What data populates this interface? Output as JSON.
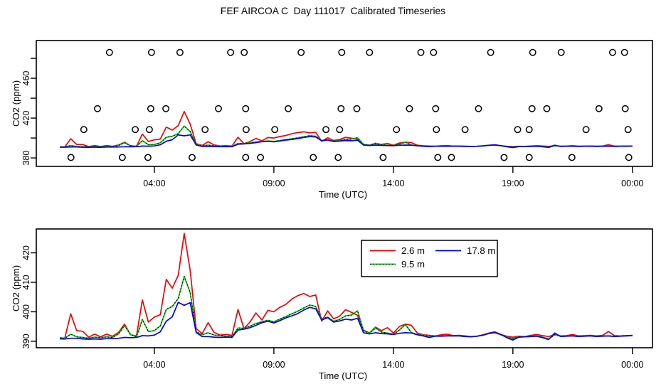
{
  "chart_data": {
    "type": "line",
    "title": "FEF AIRCOA C  Day 111017  Calibrated Timeseries",
    "xlabel": "Time (UTC)",
    "ylabel": "CO2 (ppm)",
    "xlim": [
      -0.94,
      24.84
    ],
    "xticks": [
      {
        "t": 4,
        "label": "04:00"
      },
      {
        "t": 9,
        "label": "09:00"
      },
      {
        "t": 14,
        "label": "14:00"
      },
      {
        "t": 19,
        "label": "19:00"
      },
      {
        "t": 24,
        "label": "00:00"
      }
    ],
    "x_hours": [
      0.05,
      0.25,
      0.5,
      0.75,
      1,
      1.25,
      1.5,
      1.75,
      2,
      2.25,
      2.5,
      2.75,
      3,
      3.25,
      3.5,
      3.75,
      4,
      4.25,
      4.5,
      4.75,
      5,
      5.25,
      5.5,
      5.75,
      6,
      6.25,
      6.5,
      6.75,
      7,
      7.25,
      7.5,
      7.75,
      8,
      8.25,
      8.5,
      8.75,
      9,
      9.25,
      9.5,
      9.75,
      10,
      10.25,
      10.5,
      10.75,
      11,
      11.25,
      11.5,
      11.75,
      12,
      12.25,
      12.5,
      12.75,
      13,
      13.25,
      13.5,
      13.75,
      14,
      14.25,
      14.5,
      14.75,
      15,
      15.25,
      15.5,
      15.75,
      16,
      16.25,
      16.5,
      16.75,
      17,
      17.25,
      17.5,
      17.75,
      18,
      18.25,
      18.5,
      18.75,
      19,
      19.25,
      19.5,
      19.75,
      20,
      20.25,
      20.5,
      20.75,
      21,
      21.25,
      21.5,
      21.75,
      22,
      22.25,
      22.5,
      22.75,
      23,
      23.25,
      23.5,
      23.75,
      24
    ],
    "series": [
      {
        "name": "2.6 m",
        "color": "#f50000",
        "style": "solid",
        "values": [
          391.2,
          391.0,
          399.3,
          393.6,
          393.4,
          391.4,
          392.4,
          391.5,
          392.4,
          391.7,
          393.0,
          395.8,
          392.2,
          391.8,
          404.0,
          396.5,
          398.2,
          399.0,
          411.0,
          408.0,
          412.4,
          426.6,
          414.0,
          394.3,
          392.6,
          396.3,
          393.0,
          392.1,
          392.3,
          392.0,
          400.8,
          394.3,
          396.5,
          399.6,
          397.2,
          400.5,
          400.0,
          401.5,
          402.5,
          404.3,
          405.5,
          406.2,
          405.2,
          405.7,
          396.8,
          400.3,
          397.6,
          398.5,
          400.7,
          399.8,
          398.8,
          393.8,
          392.8,
          394.8,
          393.6,
          394.6,
          392.8,
          395.0,
          395.8,
          395.4,
          392.8,
          392.2,
          392.0,
          391.8,
          392.2,
          392.4,
          391.9,
          392.0,
          391.8,
          391.6,
          391.7,
          392.2,
          392.8,
          393.2,
          392.3,
          391.7,
          391.4,
          391.7,
          391.6,
          392.0,
          392.3,
          391.9,
          391.6,
          392.3,
          391.8,
          391.9,
          392.3,
          391.8,
          391.9,
          392.0,
          391.8,
          392.0,
          393.3,
          391.9,
          391.8,
          391.9,
          392.0
        ]
      },
      {
        "name": "9.5 m",
        "color": "#00c300",
        "style": "dotted",
        "values": [
          391.0,
          391.0,
          392.4,
          391.5,
          391.3,
          391.0,
          391.4,
          391.2,
          391.5,
          391.3,
          392.5,
          395.3,
          392.3,
          391.5,
          397.4,
          393.3,
          393.6,
          395.2,
          400.8,
          401.8,
          404.5,
          412.0,
          406.5,
          393.2,
          392.2,
          392.9,
          392.1,
          391.9,
          391.7,
          391.6,
          394.5,
          394.4,
          395.1,
          396.0,
          396.6,
          397.1,
          396.6,
          397.5,
          398.4,
          399.3,
          400.2,
          401.3,
          402.3,
          401.8,
          397.5,
          398.2,
          396.8,
          397.4,
          398.6,
          398.9,
          400.3,
          393.6,
          392.7,
          394.5,
          393.1,
          392.8,
          392.4,
          393.8,
          395.7,
          393.0,
          392.3,
          392.0,
          391.8,
          391.8,
          391.8,
          391.9,
          391.8,
          391.9,
          391.7,
          391.6,
          391.7,
          392.0,
          392.6,
          392.9,
          392.2,
          391.4,
          390.9,
          391.5,
          391.5,
          391.7,
          391.8,
          391.4,
          390.8,
          392.2,
          391.7,
          391.8,
          391.9,
          391.7,
          391.8,
          391.9,
          391.7,
          391.8,
          391.8,
          391.7,
          391.8,
          391.9,
          391.9
        ]
      },
      {
        "name": "17.8 m",
        "color": "#0000ee",
        "style": "solid",
        "values": [
          390.8,
          390.8,
          391.0,
          391.0,
          390.8,
          390.7,
          390.8,
          390.7,
          390.9,
          390.9,
          391.0,
          391.3,
          391.2,
          391.3,
          391.9,
          391.8,
          392.1,
          393.2,
          396.8,
          398.3,
          403.2,
          402.2,
          403.1,
          393.0,
          391.6,
          391.6,
          391.4,
          391.3,
          391.4,
          391.3,
          393.8,
          394.1,
          394.6,
          395.4,
          396.3,
          396.8,
          396.2,
          397.0,
          397.9,
          398.6,
          399.4,
          400.6,
          401.5,
          401.0,
          397.2,
          398.0,
          396.5,
          396.9,
          397.5,
          397.2,
          397.8,
          392.9,
          392.5,
          392.9,
          392.6,
          392.5,
          392.3,
          392.7,
          392.9,
          392.8,
          392.2,
          391.8,
          391.3,
          391.7,
          391.7,
          391.8,
          391.8,
          391.8,
          391.6,
          391.5,
          391.7,
          392.1,
          392.7,
          393.0,
          392.3,
          391.2,
          390.4,
          391.4,
          391.5,
          391.6,
          391.7,
          391.2,
          390.6,
          392.8,
          391.6,
          391.7,
          391.8,
          391.6,
          391.7,
          391.8,
          391.6,
          391.7,
          391.8,
          391.6,
          391.7,
          391.8,
          391.9
        ]
      }
    ],
    "panels": [
      {
        "name": "full-range-with-calibrations",
        "ylabel": "CO2 (ppm)",
        "xlabel": "Time (UTC)",
        "ylim": [
          371.5,
          497.9
        ],
        "yticks": [
          {
            "v": 380,
            "label": "380"
          },
          {
            "v": 400,
            "label": ""
          },
          {
            "v": 420,
            "label": "420"
          },
          {
            "v": 440,
            "label": ""
          },
          {
            "v": 460,
            "label": "460"
          },
          {
            "v": 480,
            "label": ""
          }
        ],
        "circles": [
          {
            "value": 486.0,
            "times": [
              2.12,
              3.88,
              5.07,
              7.19,
              7.76,
              10.14,
              11.84,
              13.0,
              15.15,
              15.68,
              18.07,
              19.83,
              21.02,
              23.17,
              23.67
            ]
          },
          {
            "value": 429.5,
            "times": [
              1.62,
              3.85,
              4.48,
              6.68,
              7.82,
              9.6,
              11.81,
              12.47,
              14.67,
              15.77,
              17.56,
              19.8,
              20.42,
              22.6,
              23.7
            ]
          },
          {
            "value": 408.5,
            "times": [
              1.05,
              3.2,
              3.79,
              6.12,
              7.84,
              9.04,
              11.18,
              11.75,
              14.13,
              15.8,
              17.0,
              19.2,
              19.68,
              22.06,
              23.82
            ]
          },
          {
            "value": 380.5,
            "times": [
              0.51,
              2.66,
              3.73,
              5.58,
              7.82,
              8.44,
              10.65,
              11.69,
              13.57,
              15.86,
              16.43,
              18.63,
              19.68,
              21.47,
              23.85
            ]
          }
        ]
      },
      {
        "name": "zoomed-ambient",
        "ylabel": "CO2 (ppm)",
        "xlabel": "Time (UTC)",
        "ylim": [
          387.8,
          428.1
        ],
        "yticks": [
          {
            "v": 390,
            "label": "390"
          },
          {
            "v": 400,
            "label": "400"
          },
          {
            "v": 410,
            "label": "410"
          },
          {
            "v": 420,
            "label": "420"
          }
        ],
        "legend_position": "top-center"
      }
    ]
  }
}
